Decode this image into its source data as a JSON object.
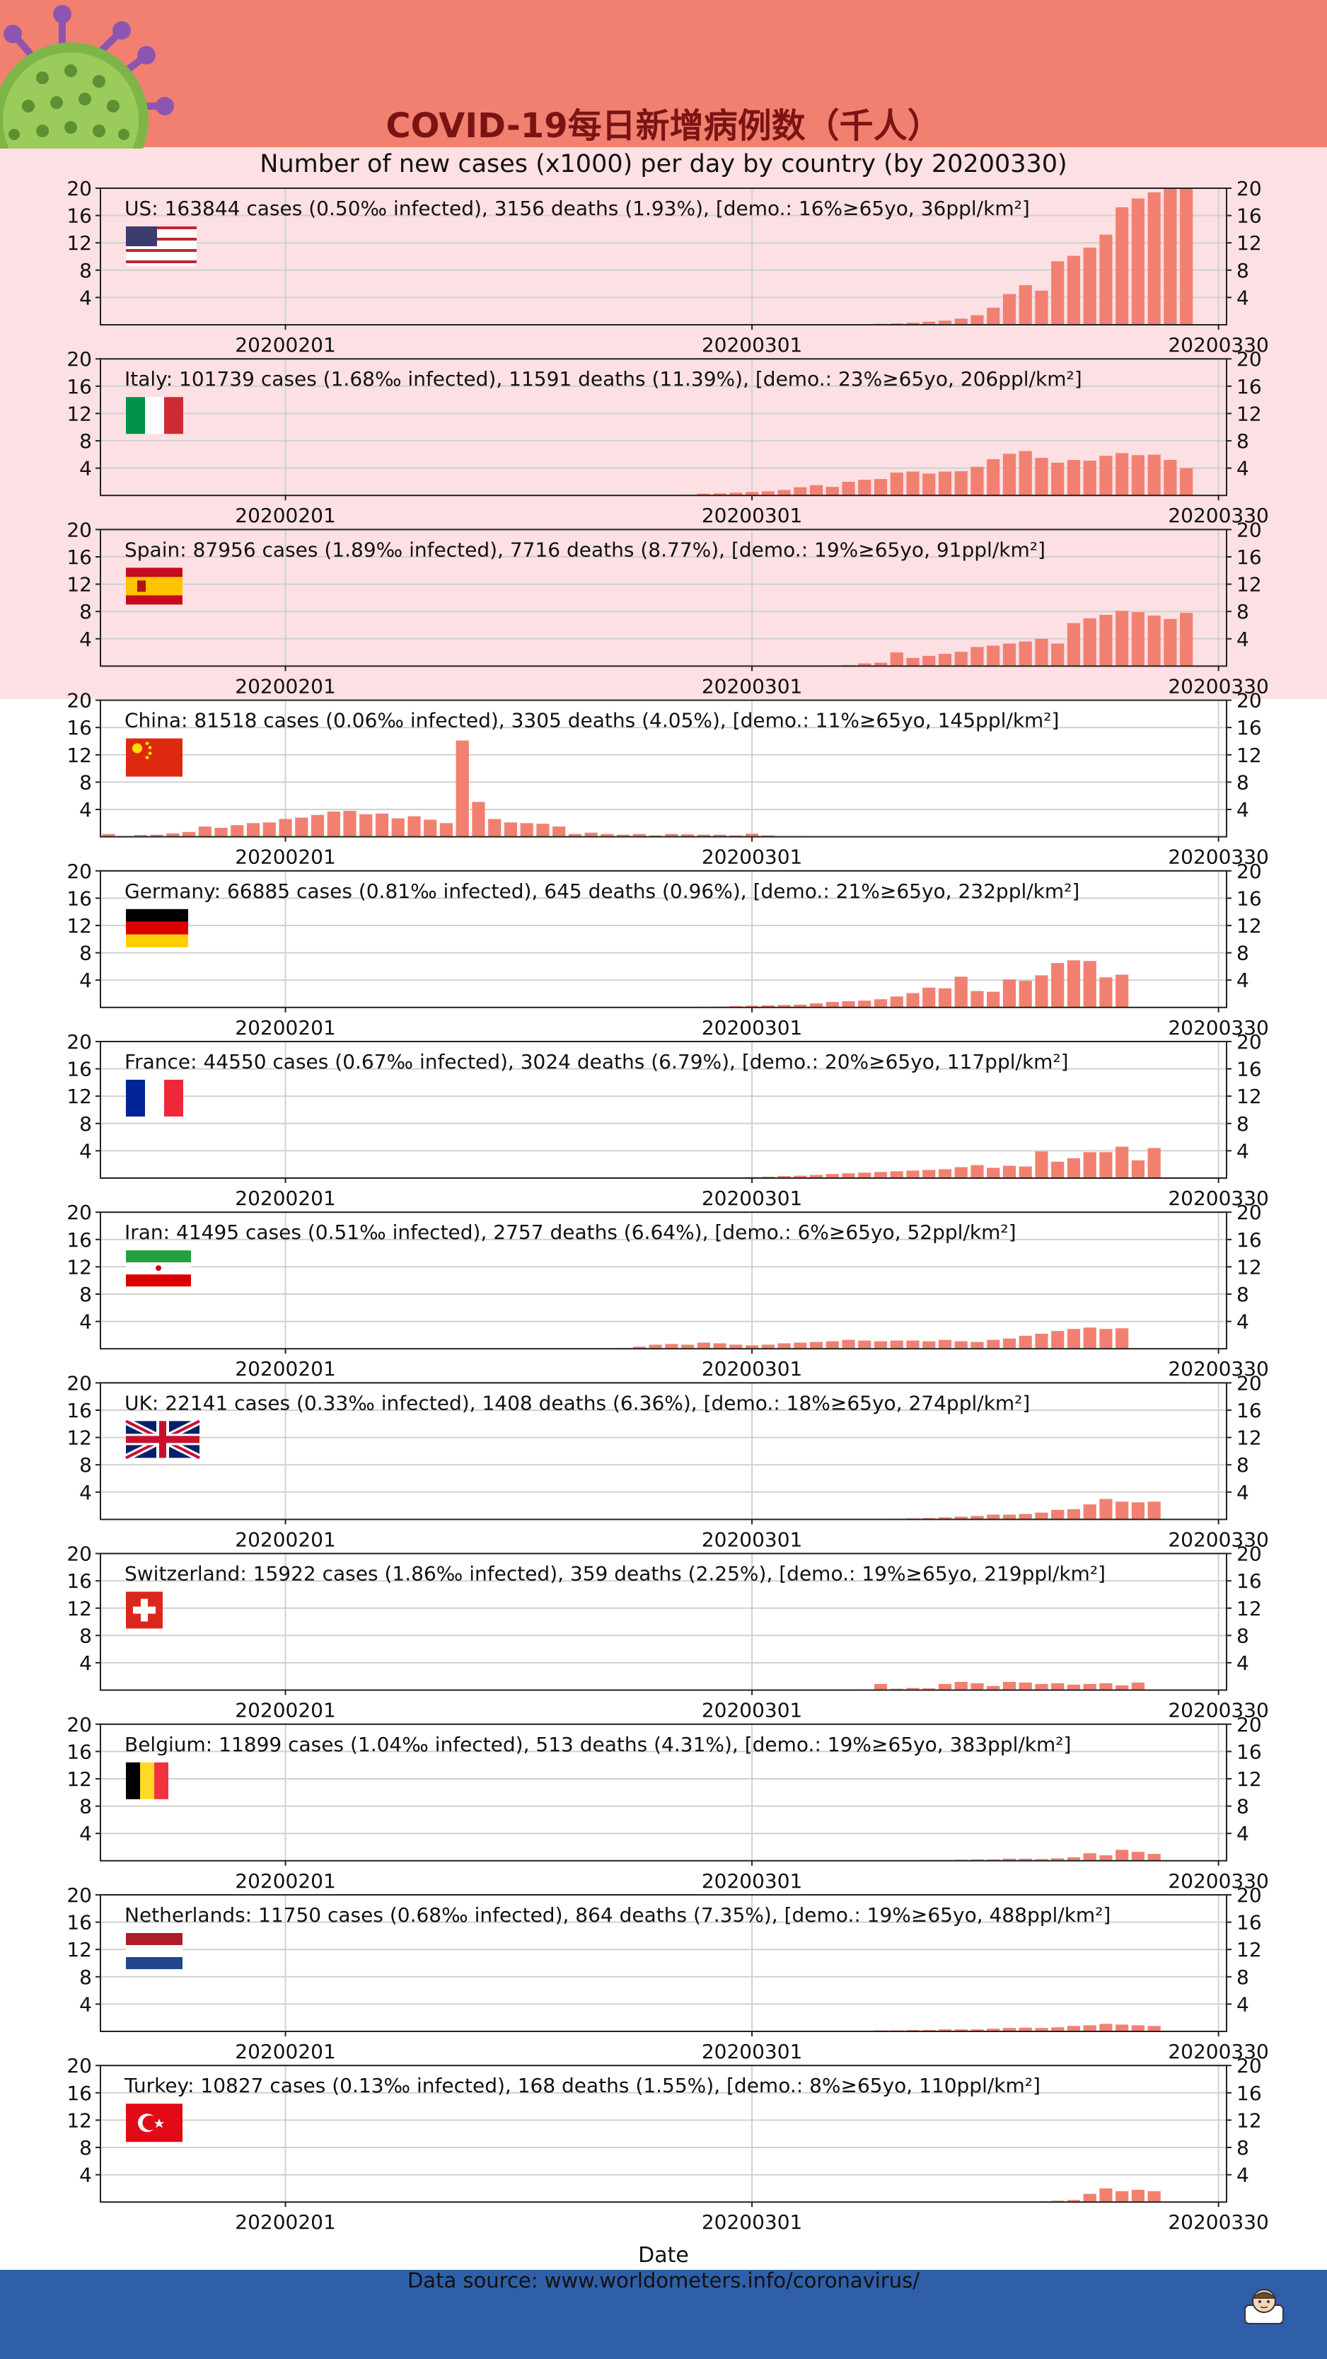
{
  "title": "COVID-19每日新增病例数（千人）",
  "subtitle": "Number of new cases (x1000) per day by country (by 20200330)",
  "xlabel": "Date",
  "source": "Data source: www.worldometers.info/coronavirus/",
  "colors": {
    "bar": "#f28070",
    "header": "#f28070",
    "band": "#fde0e4",
    "footer": "#2f5fa8",
    "grid": "#d0d0d0"
  },
  "icons": [
    "virus-icon",
    "doctor-icon"
  ],
  "chart_data": {
    "type": "bar",
    "x_start": "20200121",
    "x_end": "20200330",
    "xticks": [
      "20200201",
      "20200301",
      "20200330"
    ],
    "yticks": [
      4,
      8,
      12,
      16,
      20
    ],
    "ylim": [
      0,
      20
    ],
    "grid": true,
    "panels": [
      {
        "label": "US: 163844 cases (0.50‰ infected), 3156 deaths (1.93%), [demo.: 16%≥65yo, 36ppl/km²]",
        "flag": "us",
        "values": [
          0,
          0,
          0,
          0,
          0,
          0,
          0,
          0,
          0,
          0,
          0,
          0,
          0,
          0,
          0,
          0,
          0,
          0,
          0,
          0,
          0,
          0,
          0,
          0,
          0,
          0,
          0,
          0,
          0,
          0,
          0,
          0,
          0,
          0,
          0,
          0,
          0,
          0,
          0,
          0,
          0,
          0,
          0,
          0,
          0,
          0,
          0.05,
          0.1,
          0.15,
          0.2,
          0.3,
          0.45,
          0.6,
          0.9,
          1.4,
          2.5,
          4.5,
          5.8,
          5.0,
          9.3,
          10.1,
          11.3,
          13.2,
          17.2,
          18.5,
          19.4,
          20.0,
          19.9
        ]
      },
      {
        "label": "Italy: 101739 cases (1.68‰ infected), 11591 deaths (11.39%), [demo.: 23%≥65yo, 206ppl/km²]",
        "flag": "it",
        "values": [
          0,
          0,
          0,
          0,
          0,
          0,
          0,
          0,
          0,
          0,
          0,
          0,
          0,
          0,
          0,
          0,
          0,
          0,
          0,
          0,
          0,
          0,
          0,
          0,
          0,
          0,
          0,
          0,
          0,
          0,
          0,
          0,
          0,
          0,
          0,
          0.05,
          0.1,
          0.25,
          0.3,
          0.4,
          0.5,
          0.6,
          0.8,
          1.2,
          1.5,
          1.25,
          2.0,
          2.3,
          2.4,
          3.35,
          3.5,
          3.2,
          3.5,
          3.55,
          4.2,
          5.3,
          6.1,
          6.5,
          5.5,
          4.8,
          5.2,
          5.1,
          5.8,
          6.2,
          5.9,
          5.97,
          5.2,
          4.0
        ]
      },
      {
        "label": "Spain: 87956 cases (1.89‰ infected), 7716 deaths (8.77%), [demo.: 19%≥65yo, 91ppl/km²]",
        "flag": "es",
        "values": [
          0,
          0,
          0,
          0,
          0,
          0,
          0,
          0,
          0,
          0,
          0,
          0,
          0,
          0,
          0,
          0,
          0,
          0,
          0,
          0,
          0,
          0,
          0,
          0,
          0,
          0,
          0,
          0,
          0,
          0,
          0,
          0,
          0,
          0,
          0,
          0,
          0,
          0,
          0,
          0,
          0,
          0,
          0,
          0,
          0,
          0.1,
          0.15,
          0.4,
          0.5,
          2.0,
          1.2,
          1.5,
          1.8,
          2.1,
          2.8,
          3.0,
          3.3,
          3.6,
          4.0,
          3.3,
          6.3,
          7.0,
          7.5,
          8.1,
          7.9,
          7.4,
          6.9,
          7.8
        ]
      },
      {
        "label": "China: 81518 cases (0.06‰ infected), 3305 deaths (4.05%), [demo.: 11%≥65yo, 145ppl/km²]",
        "flag": "cn",
        "values": [
          0.4,
          0.1,
          0.25,
          0.3,
          0.5,
          0.7,
          1.5,
          1.3,
          1.7,
          2.0,
          2.1,
          2.6,
          2.8,
          3.2,
          3.7,
          3.8,
          3.3,
          3.4,
          2.7,
          3.0,
          2.5,
          2.0,
          14.1,
          5.1,
          2.6,
          2.1,
          2.0,
          1.9,
          1.5,
          0.4,
          0.6,
          0.4,
          0.3,
          0.4,
          0.2,
          0.4,
          0.35,
          0.3,
          0.3,
          0.2,
          0.45,
          0.2,
          0.1,
          0.1,
          0.05,
          0.03,
          0.02,
          0.02,
          0.03,
          0.02,
          0.02,
          0.03,
          0.04,
          0.04,
          0.05,
          0.04,
          0.04,
          0.05,
          0.05,
          0.05,
          0.04,
          0.05,
          0.05,
          0.06,
          0.05,
          0.04,
          0.04,
          0.03
        ]
      },
      {
        "label": "Germany: 66885 cases (0.81‰ infected), 645 deaths (0.96%), [demo.: 21%≥65yo, 232ppl/km²]",
        "flag": "de",
        "values": [
          0,
          0,
          0,
          0,
          0,
          0,
          0,
          0,
          0,
          0,
          0,
          0,
          0,
          0,
          0,
          0,
          0,
          0,
          0,
          0,
          0,
          0,
          0,
          0,
          0,
          0,
          0,
          0,
          0,
          0,
          0,
          0,
          0,
          0,
          0,
          0.02,
          0.05,
          0.1,
          0.12,
          0.2,
          0.25,
          0.3,
          0.35,
          0.4,
          0.6,
          0.8,
          0.9,
          1.0,
          1.2,
          1.6,
          2.1,
          2.9,
          2.8,
          4.5,
          2.4,
          2.3,
          4.1,
          3.9,
          4.7,
          6.5,
          6.9,
          6.8,
          4.4,
          4.8
        ]
      },
      {
        "label": "France: 44550 cases (0.67‰ infected), 3024 deaths (6.79%), [demo.: 20%≥65yo, 117ppl/km²]",
        "flag": "fr",
        "values": [
          0,
          0,
          0,
          0,
          0,
          0,
          0,
          0,
          0,
          0,
          0,
          0,
          0,
          0,
          0,
          0,
          0,
          0,
          0,
          0,
          0,
          0,
          0,
          0,
          0,
          0,
          0,
          0,
          0,
          0,
          0,
          0,
          0,
          0,
          0,
          0,
          0,
          0,
          0.05,
          0.1,
          0.15,
          0.2,
          0.3,
          0.35,
          0.45,
          0.6,
          0.7,
          0.8,
          0.9,
          1.0,
          1.1,
          1.2,
          1.3,
          1.6,
          1.9,
          1.5,
          1.8,
          1.7,
          3.9,
          2.4,
          2.9,
          3.8,
          3.8,
          4.6,
          2.6,
          4.4
        ]
      },
      {
        "label": "Iran: 41495 cases (0.51‰ infected), 2757 deaths (6.64%), [demo.: 6%≥65yo, 52ppl/km²]",
        "flag": "ir",
        "values": [
          0,
          0,
          0,
          0,
          0,
          0,
          0,
          0,
          0,
          0,
          0,
          0,
          0,
          0,
          0,
          0,
          0,
          0,
          0,
          0,
          0,
          0,
          0,
          0,
          0,
          0,
          0,
          0,
          0,
          0,
          0,
          0,
          0.1,
          0.3,
          0.6,
          0.7,
          0.6,
          0.9,
          0.8,
          0.6,
          0.5,
          0.6,
          0.8,
          0.9,
          1.0,
          1.1,
          1.3,
          1.2,
          1.1,
          1.2,
          1.2,
          1.1,
          1.3,
          1.1,
          1.0,
          1.3,
          1.5,
          1.9,
          2.2,
          2.6,
          2.9,
          3.1,
          2.9,
          3.0
        ]
      },
      {
        "label": "UK: 22141 cases (0.33‰ infected), 1408 deaths (6.36%), [demo.: 18%≥65yo, 274ppl/km²]",
        "flag": "uk",
        "values": [
          0,
          0,
          0,
          0,
          0,
          0,
          0,
          0,
          0,
          0,
          0,
          0,
          0,
          0,
          0,
          0,
          0,
          0,
          0,
          0,
          0,
          0,
          0,
          0,
          0,
          0,
          0,
          0,
          0,
          0,
          0,
          0,
          0,
          0,
          0,
          0,
          0,
          0,
          0,
          0,
          0,
          0,
          0,
          0,
          0,
          0,
          0,
          0,
          0.05,
          0.1,
          0.15,
          0.2,
          0.3,
          0.4,
          0.5,
          0.7,
          0.7,
          0.8,
          1.0,
          1.4,
          1.5,
          2.2,
          3.0,
          2.6,
          2.5,
          2.6
        ]
      },
      {
        "label": "Switzerland: 15922 cases (1.86‰ infected), 359 deaths (2.25%), [demo.: 19%≥65yo, 219ppl/km²]",
        "flag": "ch",
        "values": [
          0,
          0,
          0,
          0,
          0,
          0,
          0,
          0,
          0,
          0,
          0,
          0,
          0,
          0,
          0,
          0,
          0,
          0,
          0,
          0,
          0,
          0,
          0,
          0,
          0,
          0,
          0,
          0,
          0,
          0,
          0,
          0,
          0,
          0,
          0,
          0,
          0,
          0,
          0,
          0,
          0,
          0,
          0,
          0,
          0,
          0,
          0.05,
          0.1,
          0.9,
          0.2,
          0.3,
          0.25,
          0.9,
          1.2,
          1.0,
          0.6,
          1.2,
          1.1,
          0.9,
          1.0,
          0.8,
          0.9,
          1.0,
          0.7,
          1.1
        ]
      },
      {
        "label": "Belgium: 11899 cases (1.04‰ infected), 513 deaths (4.31%), [demo.: 19%≥65yo, 383ppl/km²]",
        "flag": "be",
        "values": [
          0,
          0,
          0,
          0,
          0,
          0,
          0,
          0,
          0,
          0,
          0,
          0,
          0,
          0,
          0,
          0,
          0,
          0,
          0,
          0,
          0,
          0,
          0,
          0,
          0,
          0,
          0,
          0,
          0,
          0,
          0,
          0,
          0,
          0,
          0,
          0,
          0,
          0,
          0,
          0,
          0,
          0,
          0,
          0,
          0,
          0,
          0,
          0,
          0,
          0,
          0.05,
          0.1,
          0.1,
          0.15,
          0.2,
          0.2,
          0.3,
          0.3,
          0.25,
          0.35,
          0.5,
          1.1,
          0.8,
          1.6,
          1.3,
          1.0
        ]
      },
      {
        "label": "Netherlands: 11750 cases (0.68‰ infected), 864 deaths (7.35%), [demo.: 19%≥65yo, 488ppl/km²]",
        "flag": "nl",
        "values": [
          0,
          0,
          0,
          0,
          0,
          0,
          0,
          0,
          0,
          0,
          0,
          0,
          0,
          0,
          0,
          0,
          0,
          0,
          0,
          0,
          0,
          0,
          0,
          0,
          0,
          0,
          0,
          0,
          0,
          0,
          0,
          0,
          0,
          0,
          0,
          0,
          0,
          0,
          0,
          0,
          0,
          0,
          0,
          0,
          0,
          0,
          0.05,
          0.1,
          0.15,
          0.15,
          0.2,
          0.2,
          0.3,
          0.3,
          0.3,
          0.4,
          0.5,
          0.55,
          0.5,
          0.6,
          0.8,
          0.9,
          1.1,
          1.0,
          0.9,
          0.8
        ]
      },
      {
        "label": "Turkey: 10827 cases (0.13‰ infected), 168 deaths (1.55%), [demo.: 8%≥65yo, 110ppl/km²]",
        "flag": "tr",
        "values": [
          0,
          0,
          0,
          0,
          0,
          0,
          0,
          0,
          0,
          0,
          0,
          0,
          0,
          0,
          0,
          0,
          0,
          0,
          0,
          0,
          0,
          0,
          0,
          0,
          0,
          0,
          0,
          0,
          0,
          0,
          0,
          0,
          0,
          0,
          0,
          0,
          0,
          0,
          0,
          0,
          0,
          0,
          0,
          0,
          0,
          0,
          0,
          0,
          0,
          0,
          0,
          0,
          0,
          0,
          0,
          0,
          0,
          0.05,
          0.1,
          0.2,
          0.3,
          1.2,
          2.0,
          1.6,
          1.8,
          1.6
        ]
      }
    ]
  }
}
